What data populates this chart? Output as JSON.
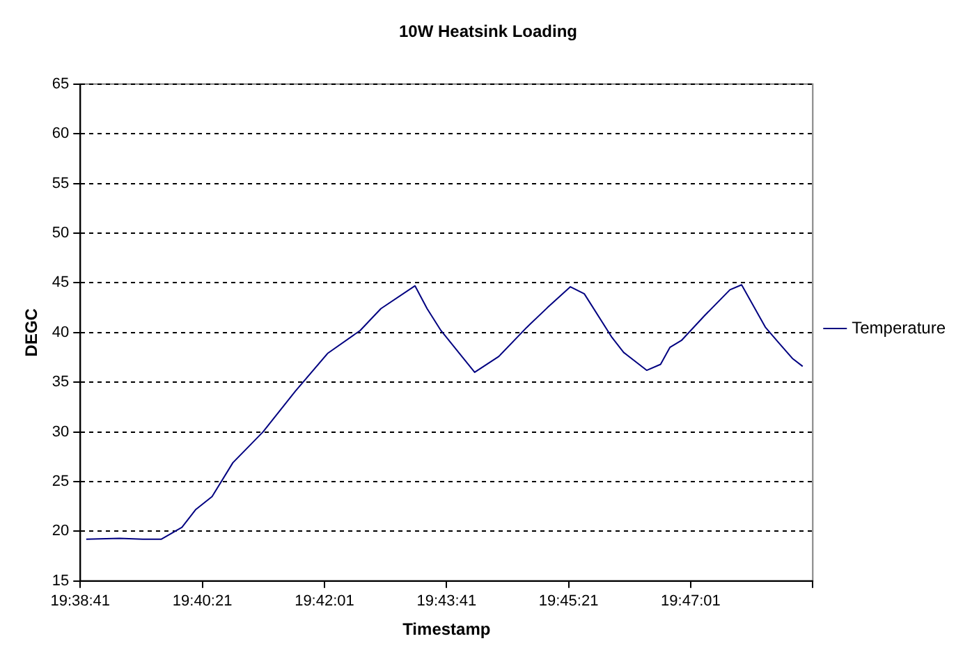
{
  "chart_data": {
    "type": "line",
    "title": "10W Heatsink Loading",
    "xlabel": "Timestamp",
    "ylabel": "DEGC",
    "x": [
      19.64608,
      19.65365,
      19.65893,
      19.66312,
      19.66786,
      19.67102,
      19.67471,
      19.67944,
      19.68629,
      19.69365,
      19.701,
      19.70839,
      19.71312,
      19.72089,
      19.72364,
      19.72679,
      19.73446,
      19.73996,
      19.74627,
      19.751,
      19.75624,
      19.7594,
      19.76571,
      19.76836,
      19.7736,
      19.77676,
      19.77888,
      19.7815,
      19.78677,
      19.79254,
      19.7952,
      19.80066,
      19.80359,
      19.80675,
      19.80909
    ],
    "series": [
      {
        "name": "Temperature",
        "color": "#000080",
        "values": [
          19.2,
          19.3,
          19.2,
          19.2,
          20.4,
          22.2,
          23.5,
          26.9,
          30.0,
          34.1,
          37.9,
          40.2,
          42.4,
          44.7,
          42.4,
          40.2,
          36.0,
          37.6,
          40.5,
          42.5,
          44.6,
          43.9,
          39.5,
          38.0,
          36.2,
          36.8,
          38.5,
          39.2,
          41.7,
          44.3,
          44.8,
          40.5,
          39.0,
          37.4,
          36.6
        ]
      }
    ],
    "xlim": [
      19.64472,
      19.81139
    ],
    "xticks": [
      {
        "value": 19.64472,
        "label": "19:38:41"
      },
      {
        "value": 19.6725,
        "label": "19:40:21"
      },
      {
        "value": 19.70028,
        "label": "19:42:01"
      },
      {
        "value": 19.72806,
        "label": "19:43:41"
      },
      {
        "value": 19.75583,
        "label": "19:45:21"
      },
      {
        "value": 19.78361,
        "label": "19:47:01"
      },
      {
        "value": 19.81139,
        "label": null
      }
    ],
    "ylim": [
      15,
      65
    ],
    "yticks": [
      15,
      20,
      25,
      30,
      35,
      40,
      45,
      50,
      55,
      60,
      65
    ],
    "grid": "y",
    "legend": "right",
    "marker": "none",
    "line_style": "solid"
  }
}
